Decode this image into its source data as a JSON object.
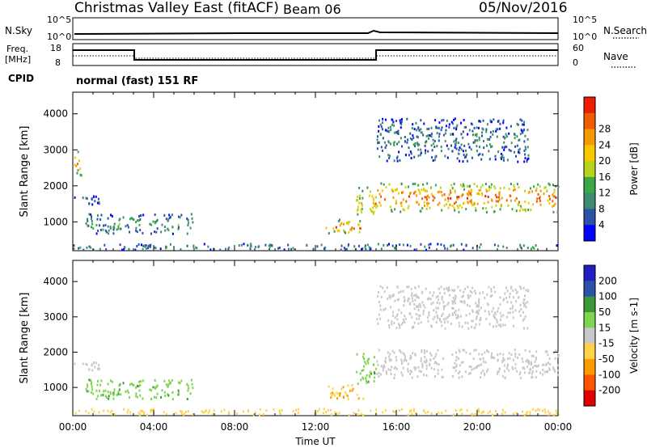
{
  "header": {
    "station": "Christmas Valley East (fitACF)",
    "beam": "Beam 06",
    "date": "05/Nov/2016"
  },
  "noise_panel": {
    "left_label": "N.Sky",
    "left_ticks": [
      "10^5",
      "10^0"
    ],
    "right_label": "N.Search",
    "right_ticks": [
      "10^5",
      "10^0"
    ]
  },
  "freq_panel": {
    "left_label_line1": "Freq.",
    "left_label_line2": "[MHz]",
    "left_ticks": [
      "18",
      "8"
    ],
    "right_label": "Nave",
    "right_ticks": [
      "60",
      "0"
    ]
  },
  "cpid": {
    "label": "CPID",
    "value": "normal (fast) 151 RF"
  },
  "colors": {
    "power": [
      "#0000ff",
      "#2a52a8",
      "#3f8a72",
      "#3aa845",
      "#b9d41a",
      "#f5c800",
      "#f59a00",
      "#f25c00",
      "#ee1c00"
    ],
    "velocity": [
      "#2020c0",
      "#2a52a8",
      "#3a9a3a",
      "#7ed650",
      "#c8c8c8",
      "#ffd24a",
      "#ff9a00",
      "#ff5500",
      "#e00000"
    ]
  },
  "chart_data": [
    {
      "type": "heatmap",
      "title": "",
      "xlabel": "",
      "ylabel": "Slant Range [km]",
      "x_ticks": [
        "00:00",
        "04:00",
        "08:00",
        "12:00",
        "16:00",
        "20:00",
        "00:00"
      ],
      "y_ticks": [
        "1000",
        "2000",
        "3000",
        "4000"
      ],
      "ylim": [
        200,
        4600
      ],
      "xlim_hours": [
        0,
        24
      ],
      "colorbar": {
        "label": "Power [dB]",
        "ticks": [
          "4",
          "8",
          "12",
          "16",
          "20",
          "24",
          "28"
        ],
        "range": [
          0,
          30
        ]
      },
      "regions": [
        {
          "t0": 0.6,
          "t1": 5.9,
          "r0": 700,
          "r1": 1250,
          "level": 11
        },
        {
          "t0": 0.0,
          "t1": 1.4,
          "r0": 1500,
          "r1": 1800,
          "level": 6
        },
        {
          "t0": 0.0,
          "t1": 0.4,
          "r0": 2300,
          "r1": 3000,
          "level": 22
        },
        {
          "t0": 12.5,
          "t1": 14.4,
          "r0": 700,
          "r1": 1100,
          "level": 26
        },
        {
          "t0": 14.0,
          "t1": 15.0,
          "r0": 1100,
          "r1": 2000,
          "level": 20
        },
        {
          "t0": 15.0,
          "t1": 24.0,
          "r0": 1300,
          "r1": 2100,
          "level": 26
        },
        {
          "t0": 15.0,
          "t1": 22.5,
          "r0": 2700,
          "r1": 3900,
          "level": 8
        },
        {
          "t0": 0.0,
          "t1": 24.0,
          "r0": 250,
          "r1": 420,
          "level": 10
        }
      ]
    },
    {
      "type": "heatmap",
      "title": "",
      "xlabel": "Time UT",
      "ylabel": "Slant Range [km]",
      "x_ticks": [
        "00:00",
        "04:00",
        "08:00",
        "12:00",
        "16:00",
        "20:00",
        "00:00"
      ],
      "y_ticks": [
        "1000",
        "2000",
        "3000",
        "4000"
      ],
      "ylim": [
        200,
        4600
      ],
      "xlim_hours": [
        0,
        24
      ],
      "colorbar": {
        "label": "Velocity [m s-1]",
        "ticks": [
          "200",
          "100",
          "50",
          "15",
          "-15",
          "-50",
          "-100",
          "-200"
        ],
        "range": [
          -250,
          250
        ]
      },
      "regions": [
        {
          "t0": 0.6,
          "t1": 5.9,
          "r0": 700,
          "r1": 1250,
          "velocity": 40
        },
        {
          "t0": 0.0,
          "t1": 1.4,
          "r0": 1500,
          "r1": 1800,
          "velocity": 0
        },
        {
          "t0": 12.5,
          "t1": 14.4,
          "r0": 700,
          "r1": 1100,
          "velocity": -50
        },
        {
          "t0": 14.0,
          "t1": 15.0,
          "r0": 1100,
          "r1": 2000,
          "velocity": 40
        },
        {
          "t0": 15.0,
          "t1": 24.0,
          "r0": 1300,
          "r1": 2100,
          "velocity": 0
        },
        {
          "t0": 15.0,
          "t1": 22.5,
          "r0": 2700,
          "r1": 3900,
          "velocity": 0
        },
        {
          "t0": 0.0,
          "t1": 24.0,
          "r0": 250,
          "r1": 420,
          "velocity": -30
        }
      ]
    }
  ]
}
